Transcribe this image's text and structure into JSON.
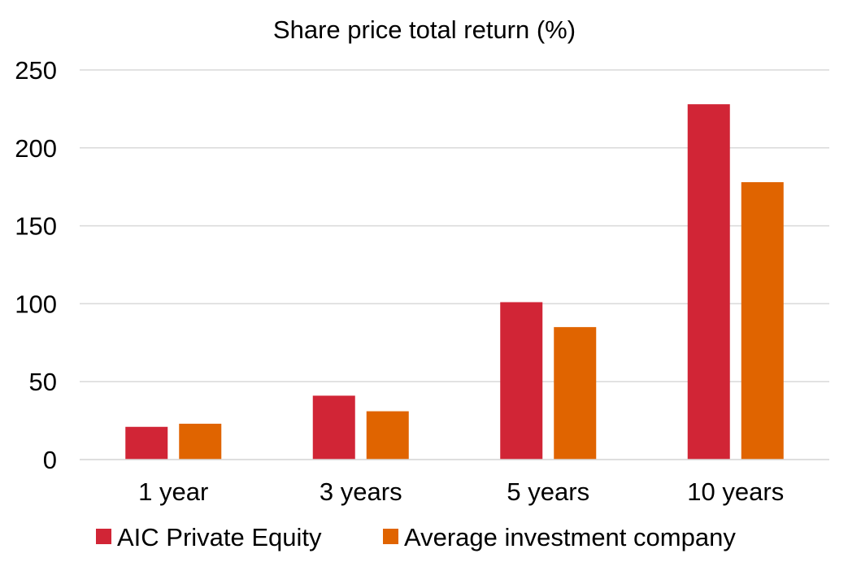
{
  "chart_data": {
    "type": "bar",
    "title": "Share price total return (%)",
    "xlabel": "",
    "ylabel": "",
    "categories": [
      "1 year",
      "3 years",
      "5 years",
      "10 years"
    ],
    "series": [
      {
        "name": "AIC Private Equity",
        "values": [
          21,
          41,
          101,
          228
        ],
        "color": "#d12536"
      },
      {
        "name": "Average investment company",
        "values": [
          23,
          31,
          85,
          178
        ],
        "color": "#e06400"
      }
    ],
    "ylim": [
      0,
      250
    ],
    "yticks": [
      "0",
      "50",
      "100",
      "150",
      "200",
      "250"
    ],
    "ytick_values": [
      0,
      50,
      100,
      150,
      200,
      250
    ],
    "grid": true,
    "legend_position": "bottom",
    "gridline_color": "#d9d9d9"
  }
}
